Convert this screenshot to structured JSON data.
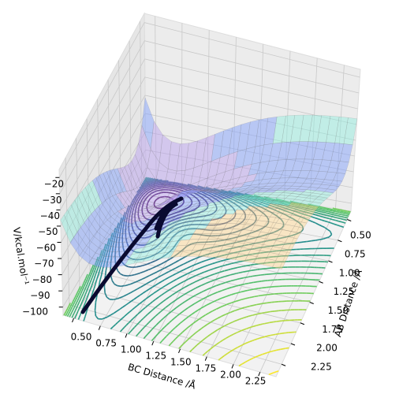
{
  "chart_data": {
    "type": "surface3d",
    "xlabel": "BC Distance /Å",
    "ylabel": "AB Distance /Å",
    "zlabel": "V/kcal.mol⁻¹",
    "xlim": [
      0.4,
      2.4
    ],
    "xticks": [
      {
        "value": 0.5,
        "label": "0.50"
      },
      {
        "value": 0.75,
        "label": "0.75"
      },
      {
        "value": 1.0,
        "label": "1.00"
      },
      {
        "value": 1.25,
        "label": "1.25"
      },
      {
        "value": 1.5,
        "label": "1.50"
      },
      {
        "value": 1.75,
        "label": "1.75"
      },
      {
        "value": 2.0,
        "label": "2.00"
      },
      {
        "value": 2.25,
        "label": "2.25"
      }
    ],
    "ylim": [
      0.4,
      2.4
    ],
    "yticks": [
      {
        "value": 0.5,
        "label": "0.50"
      },
      {
        "value": 0.75,
        "label": "0.75"
      },
      {
        "value": 1.0,
        "label": "1.00"
      },
      {
        "value": 1.25,
        "label": "1.25"
      },
      {
        "value": 1.5,
        "label": "1.50"
      },
      {
        "value": 1.75,
        "label": "1.75"
      },
      {
        "value": 2.0,
        "label": "2.00"
      },
      {
        "value": 2.25,
        "label": "2.25"
      }
    ],
    "zlim": [
      -105,
      -15
    ],
    "zticks": [
      {
        "value": -100,
        "label": "−100"
      },
      {
        "value": -90,
        "label": "−90"
      },
      {
        "value": -80,
        "label": "−80"
      },
      {
        "value": -70,
        "label": "−70"
      },
      {
        "value": -60,
        "label": "−60"
      },
      {
        "value": -50,
        "label": "−50"
      },
      {
        "value": -40,
        "label": "−40"
      },
      {
        "value": -30,
        "label": "−30"
      },
      {
        "value": -20,
        "label": "−20"
      }
    ],
    "grid": true
  }
}
